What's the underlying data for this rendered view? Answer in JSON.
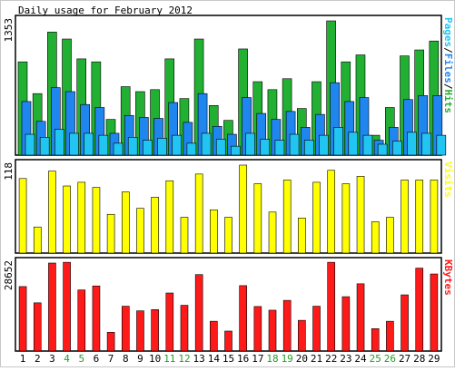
{
  "chart_data": {
    "type": "bar",
    "title": "Daily usage for February 2012",
    "colors": {
      "hits": "#22b033",
      "files": "#1f86f0",
      "pages": "#22c4f2",
      "visits": "#ffff00",
      "kbytes": "#ff1a1a",
      "weekend_label": "#22a022",
      "weekday_label": "#000000",
      "frame": "#000000",
      "panel_bg": "#ffffff",
      "page_bg": "#ffffff"
    },
    "categories": [
      "1",
      "2",
      "3",
      "4",
      "5",
      "6",
      "7",
      "8",
      "9",
      "10",
      "11",
      "12",
      "13",
      "14",
      "15",
      "16",
      "17",
      "18",
      "19",
      "20",
      "21",
      "22",
      "23",
      "24",
      "25",
      "26",
      "27",
      "28",
      "29"
    ],
    "weekend_days": [
      "4",
      "5",
      "11",
      "12",
      "18",
      "19",
      "25",
      "26"
    ],
    "panels": [
      {
        "id": "hits-files-pages",
        "ymax_label": "1353",
        "ymax": 1353,
        "legend_parts": [
          {
            "text": "Pages",
            "color": "#22c4f2"
          },
          {
            "text": "/",
            "color": "#000000"
          },
          {
            "text": "Files",
            "color": "#1f86f0"
          },
          {
            "text": "/",
            "color": "#000000"
          },
          {
            "text": "Hits",
            "color": "#22b033"
          }
        ],
        "series": [
          {
            "name": "Hits",
            "color": "#22b033",
            "values": [
              940,
              620,
              1240,
              1170,
              970,
              940,
              360,
              690,
              640,
              660,
              970,
              570,
              1170,
              500,
              350,
              1070,
              740,
              660,
              770,
              470,
              740,
              1353,
              940,
              1010,
              200,
              480,
              1000,
              1060,
              1150
            ]
          },
          {
            "name": "Files",
            "color": "#1f86f0",
            "values": [
              540,
              340,
              680,
              640,
              510,
              480,
              220,
              400,
              380,
              370,
              530,
              330,
              620,
              290,
              210,
              580,
              420,
              360,
              440,
              280,
              410,
              730,
              540,
              580,
              150,
              280,
              560,
              600,
              600
            ]
          },
          {
            "name": "Pages",
            "color": "#22c4f2",
            "values": [
              210,
              180,
              260,
              220,
              220,
              200,
              120,
              180,
              150,
              170,
              200,
              120,
              220,
              160,
              90,
              220,
              160,
              150,
              210,
              150,
              200,
              280,
              230,
              200,
              110,
              140,
              230,
              220,
              200
            ]
          }
        ]
      },
      {
        "id": "visits",
        "ymax_label": "118",
        "ymax": 118,
        "legend_parts": [
          {
            "text": "Visits",
            "color": "#ffff00"
          }
        ],
        "series": [
          {
            "name": "Visits",
            "color": "#ffff00",
            "values": [
              100,
              35,
              110,
              90,
              95,
              88,
              52,
              82,
              60,
              75,
              97,
              48,
              106,
              58,
              48,
              118,
              93,
              55,
              98,
              47,
              95,
              111,
              93,
              103,
              42,
              48,
              98,
              98,
              98
            ]
          }
        ]
      },
      {
        "id": "kbytes",
        "ymax_label": "28652",
        "ymax": 28652,
        "legend_parts": [
          {
            "text": "KBytes",
            "color": "#ff1a1a"
          }
        ],
        "series": [
          {
            "name": "KBytes",
            "color": "#ff1a1a",
            "values": [
              21000,
              15700,
              28652,
              28900,
              19900,
              21200,
              6100,
              14600,
              13100,
              13500,
              18900,
              14900,
              24900,
              9700,
              6500,
              21300,
              14500,
              13300,
              16500,
              10000,
              14600,
              28900,
              17700,
              21900,
              7300,
              9700,
              18300,
              27000,
              25100
            ]
          }
        ]
      }
    ]
  }
}
